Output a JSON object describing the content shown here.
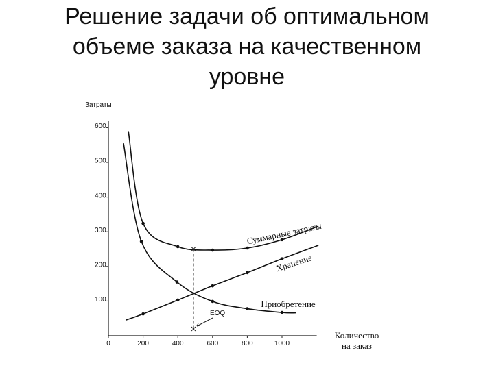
{
  "title": "Решение задачи об оптимальном объеме заказа на качественном уровне",
  "chart_data": {
    "type": "line",
    "y_label": "Затраты",
    "x_label": "Количество на заказ",
    "xlim": [
      0,
      1200
    ],
    "xticks": [
      0,
      200,
      400,
      600,
      800,
      1000
    ],
    "ylim": [
      0,
      620
    ],
    "yticks": [
      100,
      200,
      300,
      400,
      500,
      600
    ],
    "series": [
      {
        "name": "Суммарные затраты",
        "color": "#111111",
        "x": [
          115,
          200,
          400,
          600,
          800,
          1000,
          1210
        ],
        "values": [
          590,
          324,
          257,
          247,
          253,
          277,
          316
        ]
      },
      {
        "name": "Хранение",
        "color": "#111111",
        "x": [
          100,
          200,
          400,
          600,
          800,
          1000,
          1210
        ],
        "values": [
          45,
          63,
          103,
          144,
          182,
          222,
          261
        ]
      },
      {
        "name": "Приобретение",
        "color": "#111111",
        "x": [
          87,
          190,
          395,
          600,
          800,
          1000,
          1080
        ],
        "values": [
          555,
          272,
          155,
          99,
          78,
          67,
          66
        ]
      }
    ],
    "annotation": {
      "label": "EOQ",
      "x": 490,
      "y": 250
    }
  }
}
